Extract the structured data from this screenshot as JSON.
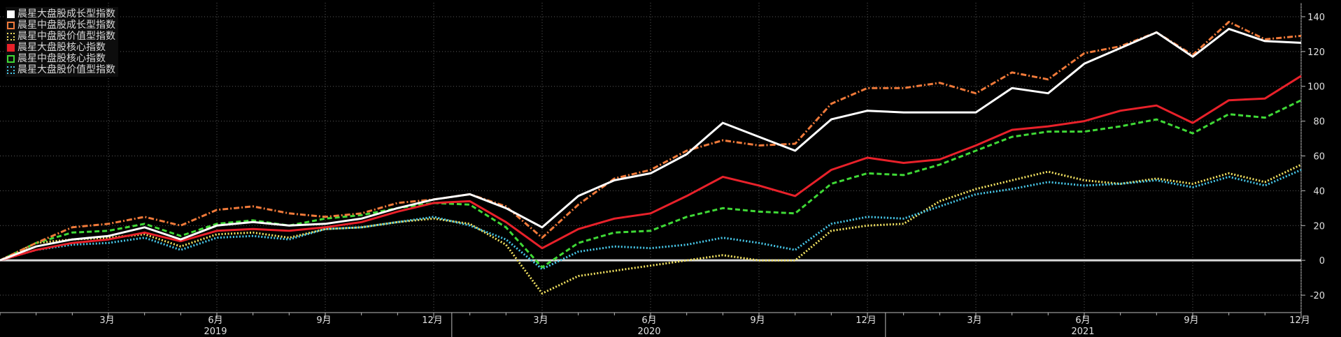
{
  "chart_data": {
    "type": "line",
    "x": [
      "2018-12",
      "2019-01",
      "2019-02",
      "2019-03",
      "2019-04",
      "2019-05",
      "2019-06",
      "2019-07",
      "2019-08",
      "2019-09",
      "2019-10",
      "2019-11",
      "2019-12",
      "2020-01",
      "2020-02",
      "2020-03",
      "2020-04",
      "2020-05",
      "2020-06",
      "2020-07",
      "2020-08",
      "2020-09",
      "2020-10",
      "2020-11",
      "2020-12",
      "2021-01",
      "2021-02",
      "2021-03",
      "2021-04",
      "2021-05",
      "2021-06",
      "2021-07",
      "2021-08",
      "2021-09",
      "2021-10",
      "2021-11",
      "2021-12"
    ],
    "series": [
      {
        "name": "晨星大盘股成长型指数",
        "color": "#ffffff",
        "style": "solid",
        "values": [
          0,
          8,
          12,
          14,
          19,
          12,
          20,
          22,
          20,
          21,
          24,
          30,
          35,
          38,
          30,
          19,
          37,
          46,
          50,
          61,
          79,
          71,
          63,
          81,
          86,
          85,
          85,
          85,
          99,
          96,
          113,
          122,
          131,
          117,
          133,
          126,
          125
        ]
      },
      {
        "name": "晨星中盘股成长型指数",
        "color": "#f07a3a",
        "style": "dash-dot",
        "values": [
          0,
          10,
          19,
          21,
          25,
          20,
          29,
          31,
          27,
          25,
          27,
          33,
          35,
          38,
          31,
          13,
          32,
          47,
          52,
          63,
          69,
          66,
          67,
          90,
          99,
          99,
          102,
          96,
          108,
          104,
          119,
          123,
          131,
          118,
          137,
          127,
          129
        ]
      },
      {
        "name": "晨星中盘股价值型指数",
        "color": "#f0e060",
        "style": "dotted",
        "values": [
          0,
          10,
          12,
          13,
          15,
          8,
          15,
          16,
          13,
          18,
          19,
          22,
          24,
          21,
          9,
          -19,
          -9,
          -6,
          -3,
          0,
          3,
          0,
          0,
          17,
          20,
          21,
          34,
          41,
          46,
          51,
          46,
          44,
          47,
          44,
          50,
          45,
          55
        ]
      },
      {
        "name": "晨星大盘股核心指数",
        "color": "#e8212a",
        "style": "solid",
        "values": [
          0,
          6,
          10,
          12,
          16,
          11,
          17,
          18,
          17,
          19,
          22,
          28,
          33,
          34,
          22,
          7,
          18,
          24,
          27,
          37,
          48,
          43,
          37,
          52,
          59,
          56,
          58,
          66,
          75,
          77,
          80,
          86,
          89,
          79,
          92,
          93,
          106
        ]
      },
      {
        "name": "晨星中盘股核心指数",
        "color": "#3fd936",
        "style": "dashed",
        "values": [
          0,
          10,
          16,
          17,
          21,
          14,
          21,
          23,
          20,
          24,
          26,
          30,
          33,
          32,
          19,
          -4,
          10,
          16,
          17,
          25,
          30,
          28,
          27,
          44,
          50,
          49,
          55,
          63,
          71,
          74,
          74,
          77,
          81,
          73,
          84,
          82,
          92
        ]
      },
      {
        "name": "晨星大盘股价值型指数",
        "color": "#47c7e8",
        "style": "dotted",
        "values": [
          0,
          6,
          9,
          10,
          13,
          6,
          13,
          14,
          12,
          18,
          19,
          22,
          25,
          20,
          12,
          -5,
          5,
          8,
          7,
          9,
          13,
          10,
          6,
          21,
          25,
          24,
          31,
          38,
          41,
          45,
          43,
          44,
          46,
          42,
          48,
          43,
          52
        ]
      }
    ],
    "y_ticks": [
      -20,
      0,
      20,
      40,
      60,
      80,
      100,
      120,
      140
    ],
    "ylim": [
      -30,
      148
    ],
    "x_month_labels": [
      {
        "i": 3,
        "label": "3月"
      },
      {
        "i": 6,
        "label": "6月"
      },
      {
        "i": 9,
        "label": "9月"
      },
      {
        "i": 12,
        "label": "12月"
      },
      {
        "i": 15,
        "label": "3月"
      },
      {
        "i": 18,
        "label": "6月"
      },
      {
        "i": 21,
        "label": "9月"
      },
      {
        "i": 24,
        "label": "12月"
      },
      {
        "i": 27,
        "label": "3月"
      },
      {
        "i": 30,
        "label": "6月"
      },
      {
        "i": 33,
        "label": "9月"
      },
      {
        "i": 36,
        "label": "12月"
      }
    ],
    "x_year_labels": [
      {
        "i": 6,
        "label": "2019"
      },
      {
        "i": 18,
        "label": "2020"
      },
      {
        "i": 30,
        "label": "2021"
      }
    ],
    "year_dividers": [
      12.5,
      24.5
    ],
    "grid": true,
    "legend_position": "top-left",
    "zero_line": true
  }
}
